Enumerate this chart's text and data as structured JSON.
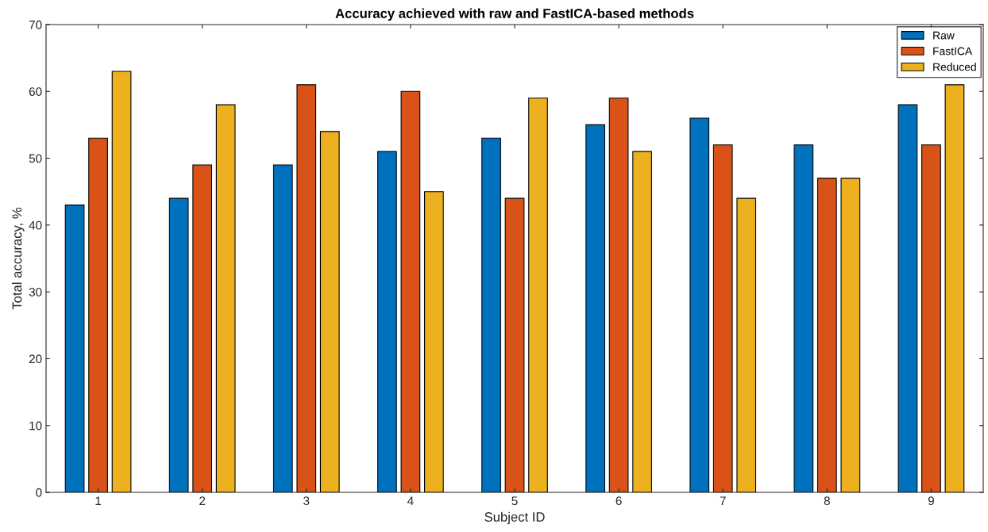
{
  "chart_data": {
    "type": "bar",
    "title": "Accuracy achieved with raw and FastICA-based methods",
    "xlabel": "Subject ID",
    "ylabel": "Total accuracy, %",
    "categories": [
      "1",
      "2",
      "3",
      "4",
      "5",
      "6",
      "7",
      "8",
      "9"
    ],
    "series": [
      {
        "name": "Raw",
        "color": "#0072bd",
        "values": [
          43,
          44,
          49,
          51,
          53,
          55,
          56,
          52,
          58
        ]
      },
      {
        "name": "FastICA",
        "color": "#d95319",
        "values": [
          53,
          49,
          61,
          60,
          44,
          59,
          52,
          47,
          52
        ]
      },
      {
        "name": "Reduced",
        "color": "#edb120",
        "values": [
          63,
          58,
          54,
          45,
          59,
          51,
          44,
          47,
          61
        ]
      }
    ],
    "ylim": [
      0,
      70
    ],
    "yticks": [
      0,
      10,
      20,
      30,
      40,
      50,
      60,
      70
    ],
    "grid": false,
    "legend": "top right"
  }
}
